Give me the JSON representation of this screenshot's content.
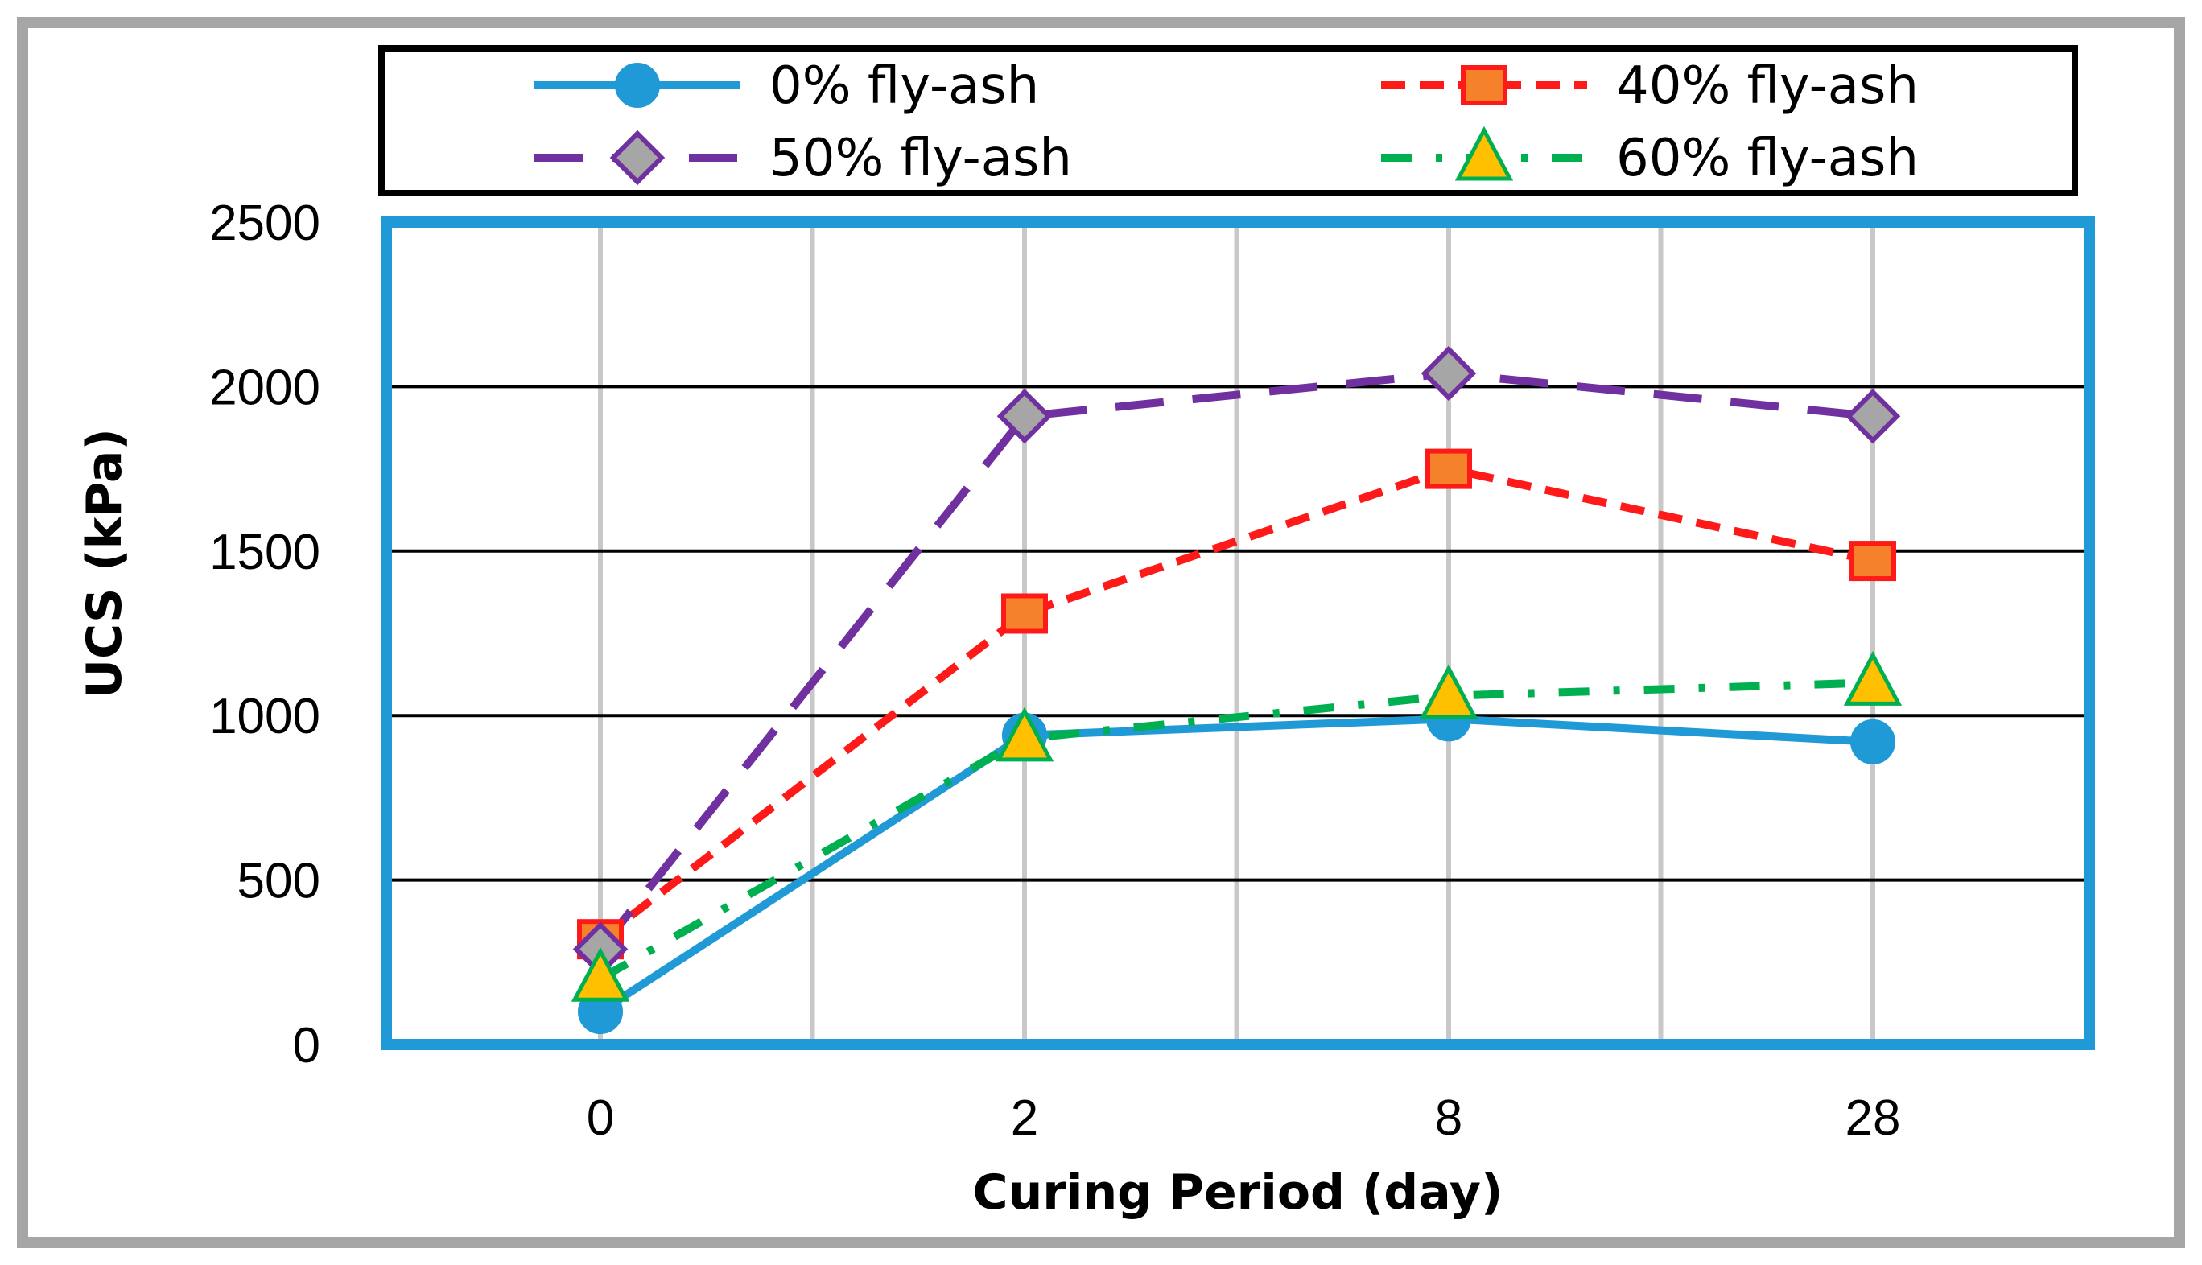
{
  "chart_data": {
    "type": "line",
    "title": "",
    "xlabel": "Curing Period (day)",
    "ylabel": "UCS (kPa)",
    "categories": [
      "0",
      "2",
      "8",
      "28"
    ],
    "ylim": [
      0,
      2500
    ],
    "yticks": [
      "0",
      "500",
      "1000",
      "1500",
      "2000",
      "2500"
    ],
    "grid": true,
    "legend_position": "top",
    "series": [
      {
        "name": "0% fly-ash",
        "values": [
          100,
          940,
          990,
          920
        ],
        "color": "#1f9ad6",
        "marker": "circle",
        "line": "solid",
        "marker_fill": "#1f9ad6"
      },
      {
        "name": "40% fly-ash",
        "values": [
          320,
          1310,
          1750,
          1470
        ],
        "color": "#ff1a1a",
        "marker": "square",
        "line": "dash",
        "marker_fill": "#f5812a"
      },
      {
        "name": "50% fly-ash",
        "values": [
          290,
          1910,
          2040,
          1910
        ],
        "color": "#7030a0",
        "marker": "diamond",
        "line": "longdash",
        "marker_fill": "#a6a6a6"
      },
      {
        "name": "60% fly-ash",
        "values": [
          200,
          930,
          1060,
          1100
        ],
        "color": "#00b050",
        "marker": "triangle",
        "line": "dashdot",
        "marker_fill": "#ffc000"
      }
    ]
  }
}
